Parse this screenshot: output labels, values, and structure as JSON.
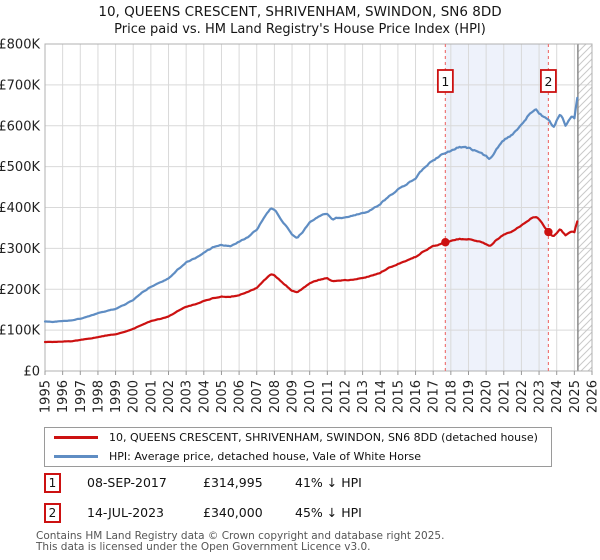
{
  "title": "10, QUEENS CRESCENT, SHRIVENHAM, SWINDON, SN6 8DD",
  "subtitle": "Price paid vs. HM Land Registry's House Price Index (HPI)",
  "chart_data": {
    "type": "line",
    "xlim": [
      1995,
      2026
    ],
    "ylim_gbp": [
      0,
      800000
    ],
    "ylim_k": [
      0,
      800
    ],
    "grid": true,
    "x_ticks": [
      1995,
      1996,
      1997,
      1998,
      1999,
      2000,
      2001,
      2002,
      2003,
      2004,
      2005,
      2006,
      2007,
      2008,
      2009,
      2010,
      2011,
      2012,
      2013,
      2014,
      2015,
      2016,
      2017,
      2018,
      2019,
      2020,
      2021,
      2022,
      2023,
      2024,
      2025,
      2026
    ],
    "y_ticks": [
      {
        "value_k": 0,
        "label": "£0"
      },
      {
        "value_k": 100,
        "label": "£100K"
      },
      {
        "value_k": 200,
        "label": "£200K"
      },
      {
        "value_k": 300,
        "label": "£300K"
      },
      {
        "value_k": 400,
        "label": "£400K"
      },
      {
        "value_k": 500,
        "label": "£500K"
      },
      {
        "value_k": 600,
        "label": "£600K"
      },
      {
        "value_k": 700,
        "label": "£700K"
      },
      {
        "value_k": 800,
        "label": "£800K"
      }
    ],
    "shaded_span_years": [
      2017.69,
      2023.53
    ],
    "hatched_span_years": [
      2025.2,
      2026
    ],
    "colors": {
      "property_line": "#cc1111",
      "hpi_line": "#5f8dc3",
      "sale_dashed_line": "#ee7777",
      "shaded_region": "#eef2fb",
      "grid_line": "#d9d9d9",
      "plot_border": "#b0b0b0",
      "hatch_line": "#c9c9c9",
      "hatch_border": "#8a8a8a"
    },
    "series": [
      {
        "name": "10, QUEENS CRESCENT, SHRIVENHAM, SWINDON, SN6 8DD (detached house)",
        "color": "#cc1111",
        "unit": "GBP_thousands",
        "points": [
          [
            1995,
            71
          ],
          [
            1995.5,
            71
          ],
          [
            1996,
            72
          ],
          [
            1996.5,
            73
          ],
          [
            1997,
            76
          ],
          [
            1997.5,
            79
          ],
          [
            1998,
            83
          ],
          [
            1998.5,
            87
          ],
          [
            1999,
            90
          ],
          [
            1999.5,
            96
          ],
          [
            2000,
            103
          ],
          [
            2000.5,
            113
          ],
          [
            2001,
            122
          ],
          [
            2001.5,
            127
          ],
          [
            2002,
            133
          ],
          [
            2002.5,
            146
          ],
          [
            2003,
            157
          ],
          [
            2003.5,
            163
          ],
          [
            2004,
            171
          ],
          [
            2004.5,
            178
          ],
          [
            2005,
            182
          ],
          [
            2005.5,
            181
          ],
          [
            2006,
            186
          ],
          [
            2006.5,
            194
          ],
          [
            2007,
            204
          ],
          [
            2007.5,
            225
          ],
          [
            2007.8,
            236
          ],
          [
            2008,
            234
          ],
          [
            2008.5,
            215
          ],
          [
            2009,
            196
          ],
          [
            2009.3,
            192
          ],
          [
            2009.6,
            201
          ],
          [
            2010,
            215
          ],
          [
            2010.5,
            223
          ],
          [
            2011,
            227
          ],
          [
            2011.3,
            219
          ],
          [
            2011.5,
            221
          ],
          [
            2012,
            222
          ],
          [
            2012.5,
            224
          ],
          [
            2013,
            228
          ],
          [
            2013.5,
            233
          ],
          [
            2014,
            241
          ],
          [
            2014.5,
            253
          ],
          [
            2015,
            262
          ],
          [
            2015.5,
            270
          ],
          [
            2016,
            279
          ],
          [
            2016.5,
            294
          ],
          [
            2017,
            305
          ],
          [
            2017.69,
            315
          ],
          [
            2018,
            319
          ],
          [
            2018.5,
            323
          ],
          [
            2019,
            322
          ],
          [
            2019.5,
            318
          ],
          [
            2020,
            310
          ],
          [
            2020.2,
            305
          ],
          [
            2020.6,
            322
          ],
          [
            2021,
            333
          ],
          [
            2021.5,
            342
          ],
          [
            2022,
            355
          ],
          [
            2022.5,
            373
          ],
          [
            2022.8,
            378
          ],
          [
            2023,
            371
          ],
          [
            2023.53,
            340
          ],
          [
            2023.8,
            328
          ],
          [
            2024.2,
            347
          ],
          [
            2024.5,
            331
          ],
          [
            2024.8,
            342
          ],
          [
            2025,
            340
          ],
          [
            2025.2,
            371
          ]
        ]
      },
      {
        "name": "HPI: Average price, detached house, Vale of White Horse",
        "color": "#5f8dc3",
        "unit": "GBP_thousands",
        "points": [
          [
            1995,
            121
          ],
          [
            1995.5,
            120
          ],
          [
            1996,
            122
          ],
          [
            1996.5,
            124
          ],
          [
            1997,
            128
          ],
          [
            1997.5,
            134
          ],
          [
            1998,
            141
          ],
          [
            1998.5,
            147
          ],
          [
            1999,
            152
          ],
          [
            1999.5,
            162
          ],
          [
            2000,
            174
          ],
          [
            2000.5,
            192
          ],
          [
            2001,
            206
          ],
          [
            2001.5,
            216
          ],
          [
            2002,
            226
          ],
          [
            2002.5,
            248
          ],
          [
            2003,
            266
          ],
          [
            2003.5,
            276
          ],
          [
            2004,
            289
          ],
          [
            2004.5,
            302
          ],
          [
            2005,
            308
          ],
          [
            2005.5,
            306
          ],
          [
            2006,
            316
          ],
          [
            2006.5,
            328
          ],
          [
            2007,
            345
          ],
          [
            2007.5,
            382
          ],
          [
            2007.8,
            400
          ],
          [
            2008,
            396
          ],
          [
            2008.5,
            364
          ],
          [
            2009,
            333
          ],
          [
            2009.3,
            325
          ],
          [
            2009.6,
            340
          ],
          [
            2010,
            364
          ],
          [
            2010.5,
            378
          ],
          [
            2011,
            385
          ],
          [
            2011.3,
            371
          ],
          [
            2011.5,
            374
          ],
          [
            2012,
            376
          ],
          [
            2012.5,
            380
          ],
          [
            2013,
            386
          ],
          [
            2013.5,
            395
          ],
          [
            2014,
            408
          ],
          [
            2014.5,
            428
          ],
          [
            2015,
            444
          ],
          [
            2015.5,
            458
          ],
          [
            2016,
            472
          ],
          [
            2016.5,
            498
          ],
          [
            2017,
            516
          ],
          [
            2017.69,
            534
          ],
          [
            2018,
            540
          ],
          [
            2018.5,
            548
          ],
          [
            2019,
            545
          ],
          [
            2019.5,
            538
          ],
          [
            2020,
            525
          ],
          [
            2020.2,
            516
          ],
          [
            2020.6,
            545
          ],
          [
            2021,
            565
          ],
          [
            2021.5,
            580
          ],
          [
            2022,
            601
          ],
          [
            2022.5,
            632
          ],
          [
            2022.8,
            640
          ],
          [
            2023,
            628
          ],
          [
            2023.53,
            618
          ],
          [
            2023.8,
            596
          ],
          [
            2024.2,
            630
          ],
          [
            2024.5,
            602
          ],
          [
            2024.8,
            622
          ],
          [
            2025,
            618
          ],
          [
            2025.2,
            675
          ]
        ]
      }
    ],
    "sales": [
      {
        "marker": "1",
        "year": 2017.69,
        "price_k": 315,
        "price_label": "£314,995"
      },
      {
        "marker": "2",
        "year": 2023.53,
        "price_k": 340,
        "price_label": "£340,000"
      }
    ]
  },
  "legend": {
    "items": [
      {
        "label": "10, QUEENS CRESCENT, SHRIVENHAM, SWINDON, SN6 8DD (detached house)",
        "color": "#cc1111"
      },
      {
        "label": "HPI: Average price, detached house, Vale of White Horse",
        "color": "#5f8dc3"
      }
    ]
  },
  "annotations": [
    {
      "num": "1",
      "date": "08-SEP-2017",
      "price": "£314,995",
      "hpi": "41% ↓ HPI"
    },
    {
      "num": "2",
      "date": "14-JUL-2023",
      "price": "£340,000",
      "hpi": "45% ↓ HPI"
    }
  ],
  "footer": {
    "line1": "Contains HM Land Registry data © Crown copyright and database right 2025.",
    "line2": "This data is licensed under the Open Government Licence v3.0."
  }
}
